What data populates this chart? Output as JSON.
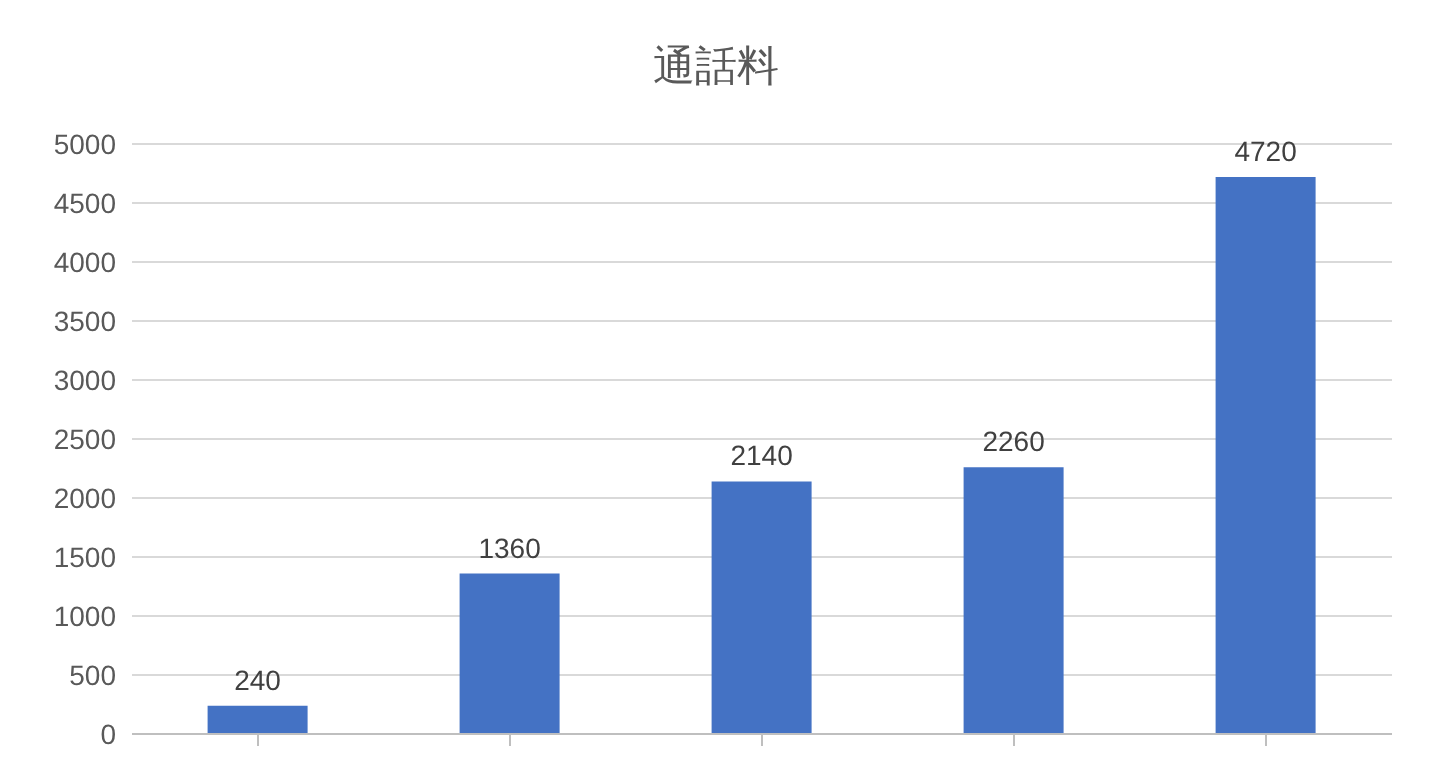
{
  "chart_data": {
    "type": "bar",
    "title": "通話料",
    "categories": [
      null,
      null,
      null,
      null,
      null
    ],
    "values": [
      240,
      1360,
      2140,
      2260,
      4720
    ],
    "color": "#4472c4",
    "ylim": [
      0,
      5000
    ],
    "yticks": [
      0,
      500,
      1000,
      1500,
      2000,
      2500,
      3000,
      3500,
      4000,
      4500,
      5000
    ],
    "grid": "y",
    "data_labels": true
  }
}
